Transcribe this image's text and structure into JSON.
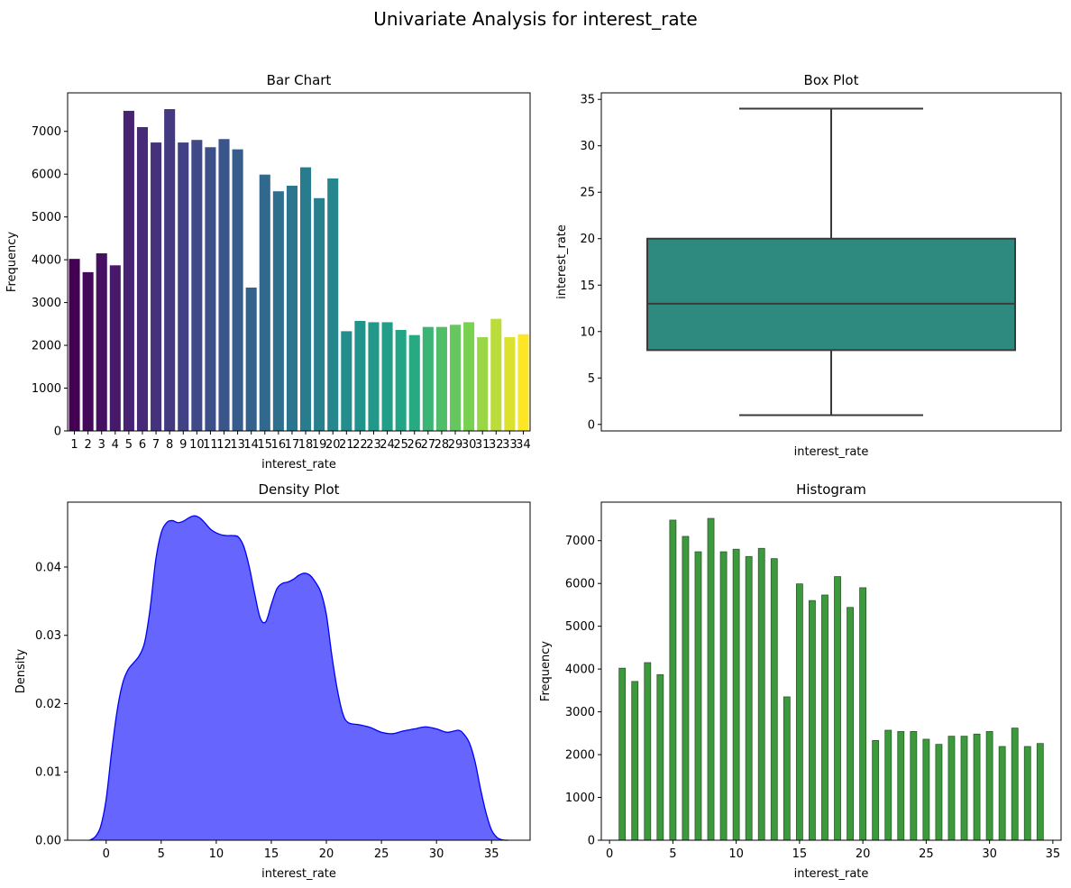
{
  "figure": {
    "title": "Univariate Analysis for interest_rate"
  },
  "chart_data": [
    {
      "type": "bar",
      "title": "Bar Chart",
      "xlabel": "interest_rate",
      "ylabel": "Frequency",
      "categories": [
        "1",
        "2",
        "3",
        "4",
        "5",
        "6",
        "7",
        "8",
        "9",
        "10",
        "11",
        "12",
        "13",
        "14",
        "15",
        "16",
        "17",
        "18",
        "19",
        "20",
        "21",
        "22",
        "23",
        "24",
        "25",
        "26",
        "27",
        "28",
        "29",
        "30",
        "31",
        "32",
        "33",
        "34"
      ],
      "values": [
        4020,
        3710,
        4150,
        3870,
        7480,
        7100,
        6740,
        7520,
        6740,
        6800,
        6630,
        6820,
        6580,
        3350,
        5990,
        5600,
        5730,
        6160,
        5440,
        5900,
        2330,
        2570,
        2540,
        2540,
        2360,
        2240,
        2430,
        2430,
        2480,
        2540,
        2190,
        2620,
        2190,
        2260
      ],
      "ylim": [
        0,
        7900
      ],
      "yticks": [
        0,
        1000,
        2000,
        3000,
        4000,
        5000,
        6000,
        7000
      ],
      "palette": "viridis"
    },
    {
      "type": "box",
      "title": "Box Plot",
      "xlabel": "interest_rate",
      "ylabel": "interest_rate",
      "whisker_low": 1,
      "q1": 8,
      "median": 13,
      "q3": 20,
      "whisker_high": 34,
      "ylim": [
        -0.7,
        35.7
      ],
      "yticks": [
        0,
        5,
        10,
        15,
        20,
        25,
        30,
        35
      ],
      "color": "#2e8a7e"
    },
    {
      "type": "area",
      "title": "Density Plot",
      "xlabel": "interest_rate",
      "ylabel": "Density",
      "x": [
        -1.5,
        -1,
        -0.5,
        0,
        0.5,
        1,
        1.5,
        2,
        2.5,
        3,
        3.5,
        4,
        4.5,
        5,
        5.5,
        6,
        6.5,
        7,
        7.5,
        8,
        8.5,
        9,
        9.5,
        10,
        10.5,
        11,
        11.5,
        12,
        12.5,
        13,
        13.5,
        14,
        14.5,
        15,
        15.5,
        16,
        16.5,
        17,
        17.5,
        18,
        18.5,
        19,
        19.5,
        20,
        20.5,
        21,
        21.5,
        22,
        23,
        24,
        25,
        26,
        27,
        28,
        29,
        30,
        31,
        32,
        32.5,
        33,
        33.5,
        34,
        34.5,
        35,
        35.5,
        36,
        36.5
      ],
      "y": [
        0,
        0.0005,
        0.002,
        0.006,
        0.013,
        0.019,
        0.023,
        0.025,
        0.026,
        0.027,
        0.029,
        0.034,
        0.041,
        0.045,
        0.0465,
        0.0468,
        0.0465,
        0.0467,
        0.0472,
        0.0475,
        0.0472,
        0.0464,
        0.0455,
        0.045,
        0.0447,
        0.0446,
        0.0446,
        0.0444,
        0.043,
        0.04,
        0.036,
        0.0325,
        0.032,
        0.0345,
        0.0368,
        0.0376,
        0.0378,
        0.0382,
        0.0388,
        0.0391,
        0.0388,
        0.0378,
        0.0363,
        0.033,
        0.027,
        0.022,
        0.0185,
        0.0172,
        0.0169,
        0.0165,
        0.0158,
        0.0156,
        0.016,
        0.0163,
        0.0166,
        0.0163,
        0.0158,
        0.0161,
        0.0155,
        0.0142,
        0.0115,
        0.0075,
        0.004,
        0.0015,
        0.0004,
        5e-05,
        0
      ],
      "xlim": [
        -3.5,
        38.5
      ],
      "ylim": [
        0,
        0.0495
      ],
      "xticks": [
        0,
        5,
        10,
        15,
        20,
        25,
        30,
        35
      ],
      "yticks": [
        0.0,
        0.01,
        0.02,
        0.03,
        0.04
      ],
      "ytick_labels": [
        "0.00",
        "0.01",
        "0.02",
        "0.03",
        "0.04"
      ],
      "color": "#6666ff",
      "line_color": "#0000ff"
    },
    {
      "type": "bar",
      "title": "Histogram",
      "xlabel": "interest_rate",
      "ylabel": "Frequency",
      "x": [
        1,
        2,
        3,
        4,
        5,
        6,
        7,
        8,
        9,
        10,
        11,
        12,
        13,
        14,
        15,
        16,
        17,
        18,
        19,
        20,
        21,
        22,
        23,
        24,
        25,
        26,
        27,
        28,
        29,
        30,
        31,
        32,
        33,
        34
      ],
      "values": [
        4020,
        3710,
        4150,
        3870,
        7480,
        7100,
        6740,
        7520,
        6740,
        6800,
        6630,
        6820,
        6580,
        3350,
        5990,
        5600,
        5730,
        6160,
        5440,
        5900,
        2330,
        2570,
        2540,
        2540,
        2360,
        2240,
        2430,
        2430,
        2480,
        2540,
        2190,
        2620,
        2190,
        2260
      ],
      "xlim": [
        -0.65,
        35.65
      ],
      "ylim": [
        0,
        7900
      ],
      "xticks": [
        0,
        5,
        10,
        15,
        20,
        25,
        30,
        35
      ],
      "yticks": [
        0,
        1000,
        2000,
        3000,
        4000,
        5000,
        6000,
        7000
      ],
      "color": "#3c9a3c",
      "edge_color": "#2b5a2b"
    }
  ]
}
